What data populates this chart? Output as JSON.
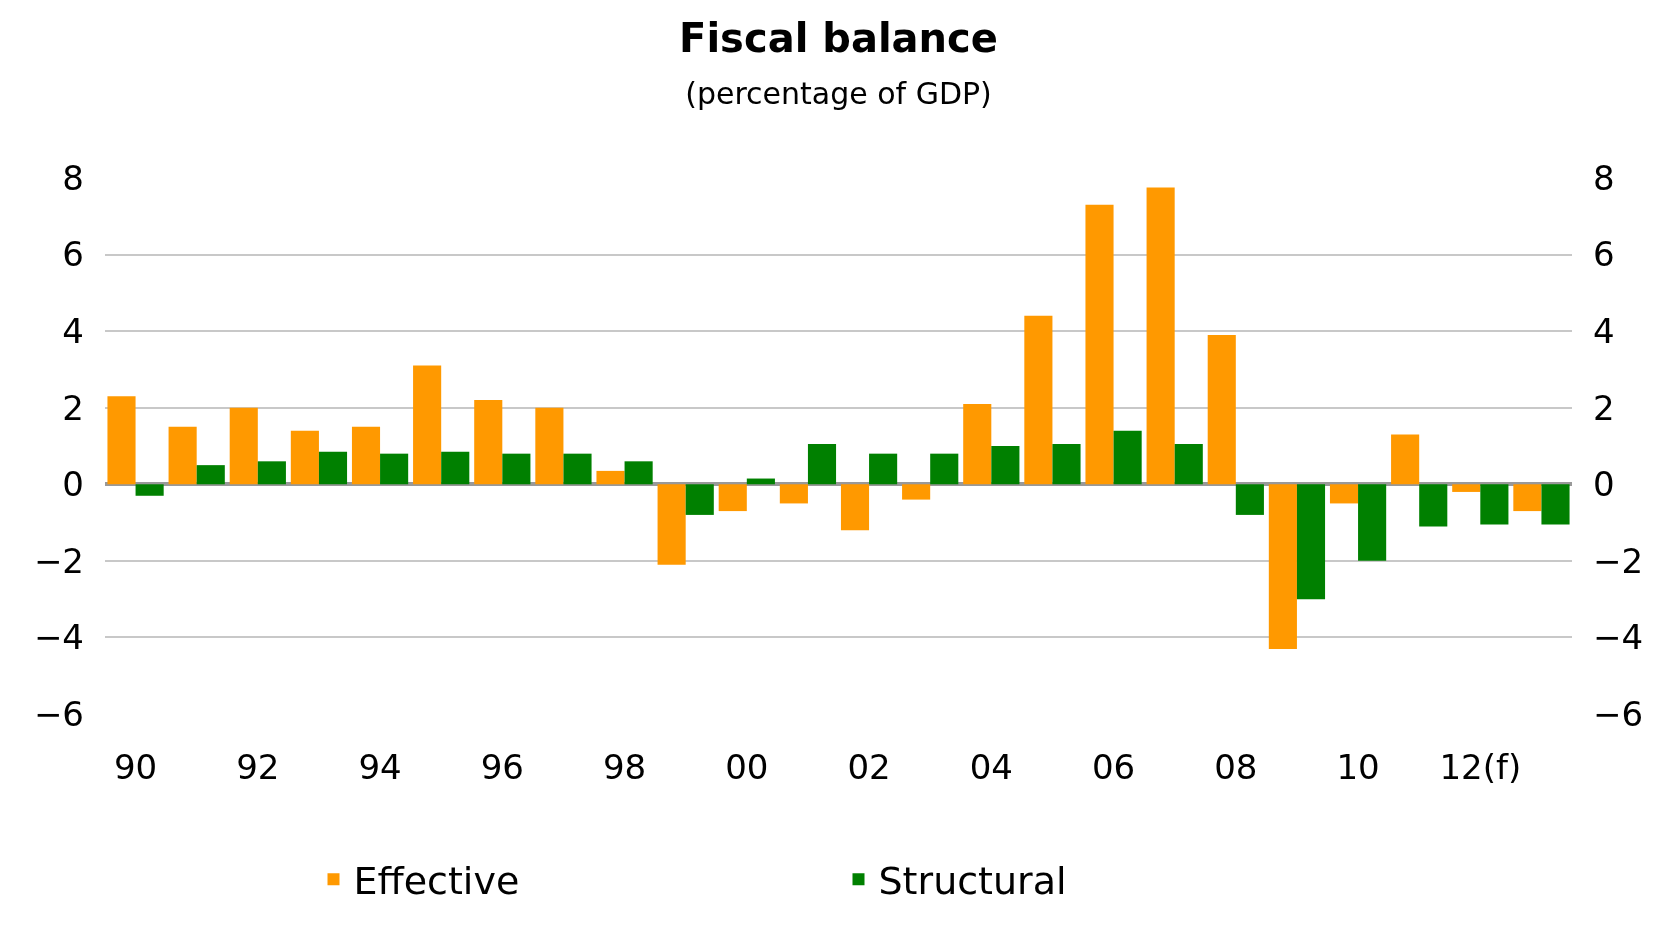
{
  "chart_data": {
    "type": "bar",
    "title": "Fiscal balance",
    "subtitle": "(percentage of GDP)",
    "categories": [
      "90",
      null,
      "92",
      null,
      "94",
      null,
      "96",
      null,
      "98",
      null,
      "00",
      null,
      "02",
      null,
      "04",
      null,
      "06",
      null,
      "08",
      null,
      "10",
      null,
      "12(f)",
      null
    ],
    "series": [
      {
        "name": "Effective",
        "color": "#ff9900",
        "values": [
          2.3,
          1.5,
          2.0,
          1.4,
          1.5,
          3.1,
          2.2,
          2.0,
          0.35,
          -2.1,
          -0.7,
          -0.5,
          -1.2,
          -0.4,
          2.1,
          4.4,
          7.3,
          7.75,
          3.9,
          -4.3,
          -0.5,
          1.3,
          -0.2,
          -0.7
        ]
      },
      {
        "name": "Structural",
        "color": "#008000",
        "values": [
          -0.3,
          0.5,
          0.6,
          0.85,
          0.8,
          0.85,
          0.8,
          0.8,
          0.6,
          -0.8,
          0.15,
          1.05,
          0.8,
          0.8,
          1.0,
          1.05,
          1.4,
          1.05,
          -0.8,
          -3.0,
          -2.0,
          -1.1,
          -1.05,
          -1.05
        ]
      }
    ],
    "ylim": [
      -6,
      8
    ],
    "yticks": [
      {
        "value": -6,
        "label": "−6"
      },
      {
        "value": -4,
        "label": "−4"
      },
      {
        "value": -2,
        "label": "−2"
      },
      0,
      2,
      4,
      6,
      8
    ],
    "y2lim": [
      -6,
      8
    ],
    "y2ticks": [
      {
        "value": -6,
        "label": "−6"
      },
      {
        "value": -4,
        "label": "−4"
      },
      {
        "value": -2,
        "label": "−2"
      },
      0,
      2,
      4,
      6,
      8
    ],
    "grid": "y",
    "legend": "bottom"
  }
}
